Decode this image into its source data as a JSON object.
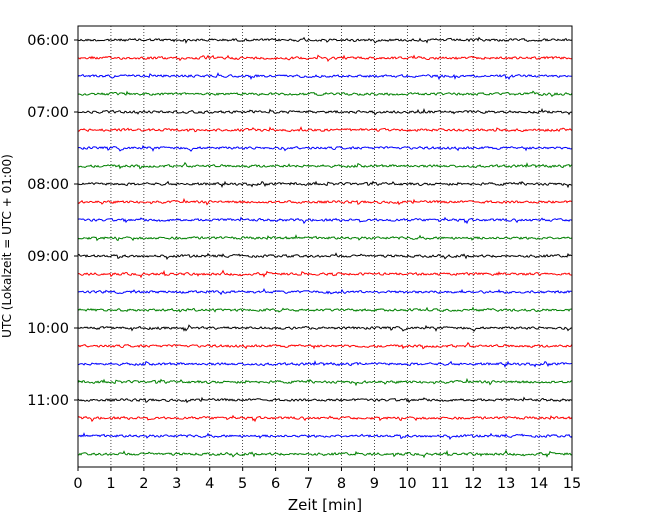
{
  "chart_data": {
    "type": "line",
    "subtype": "helicorder",
    "xlabel": "Zeit  [min]",
    "ylabel": "UTC (Lokalzeit = UTC + 01:00)",
    "xlim": [
      0,
      15
    ],
    "x_ticks": [
      "0",
      "1",
      "2",
      "3",
      "4",
      "5",
      "6",
      "7",
      "8",
      "9",
      "10",
      "11",
      "12",
      "13",
      "14",
      "15"
    ],
    "y_ticks": [
      "06:00",
      "07:00",
      "08:00",
      "09:00",
      "10:00",
      "11:00"
    ],
    "grid": "vertical dotted at each minute",
    "trace_interval_minutes": 15,
    "trace_start": "06:00",
    "trace_count": 24,
    "trace_colors": [
      "#000000",
      "#ff0000",
      "#0000ff",
      "#008000"
    ],
    "colors": {
      "axes": "#000000",
      "grid": "#000000",
      "background": "#ffffff"
    }
  }
}
